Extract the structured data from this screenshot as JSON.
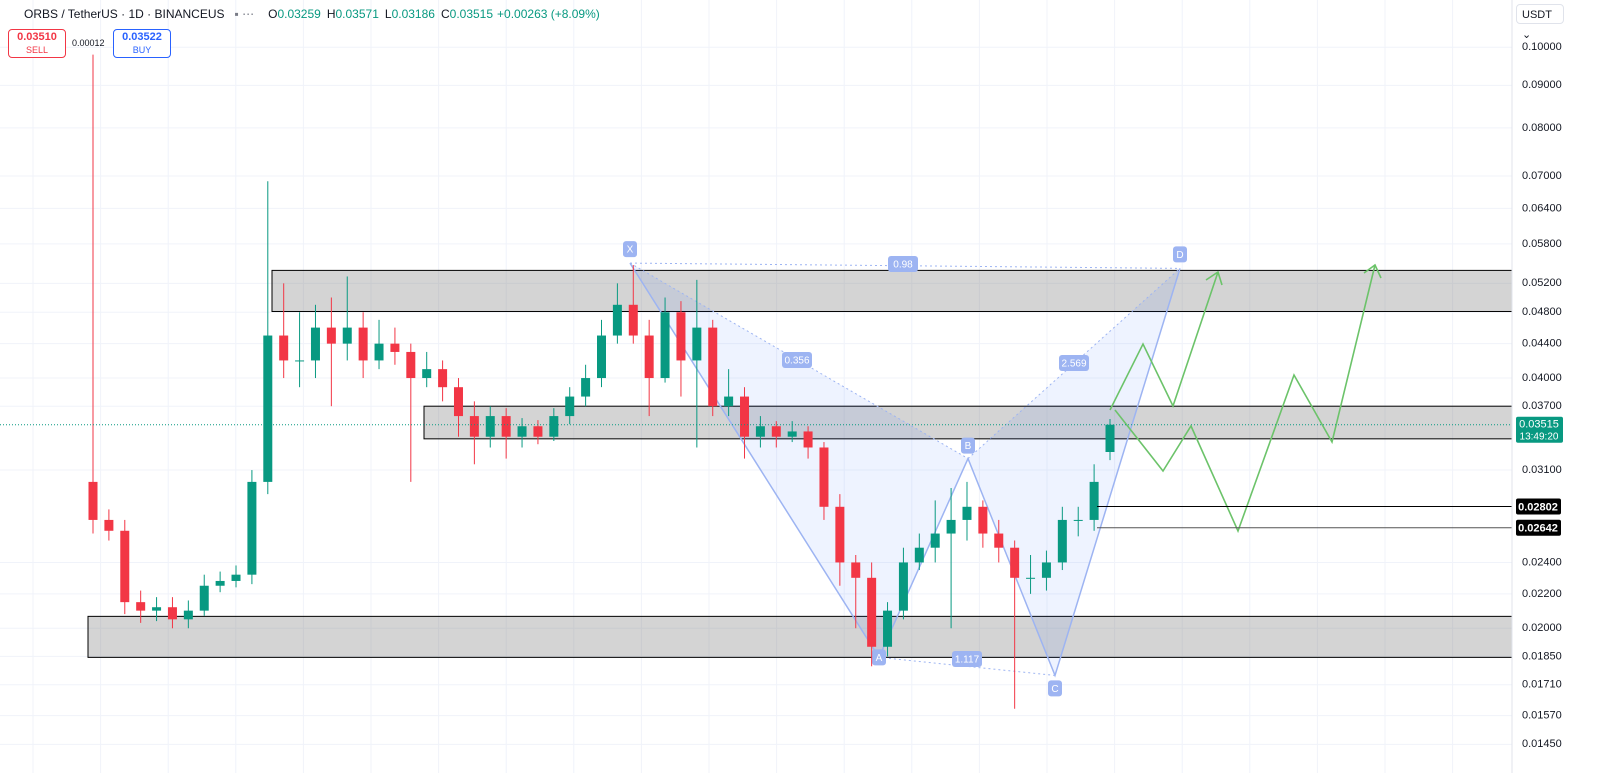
{
  "header": {
    "symbol": "ORBS / TetherUS · 1D · BINANCEUS",
    "ohlc_labels": [
      "O",
      "H",
      "L",
      "C"
    ],
    "change": "+0.00263 (+8.09%)",
    "sell_price": "0.03510",
    "sell": "SELL",
    "spread": "0.00012",
    "buy_price": "0.03522",
    "buy": "BUY",
    "currency": "USDT"
  },
  "chart_data": {
    "type": "candlestick",
    "log_scale": true,
    "grid": true,
    "up_color": "#089981",
    "down_color": "#f23645",
    "open": [
      0.03,
      0.027,
      0.0262,
      0.0215,
      0.021,
      0.0212,
      0.0205,
      0.021,
      0.0225,
      0.0228,
      0.0232,
      0.03,
      0.045,
      0.042,
      0.042,
      0.046,
      0.044,
      0.046,
      0.042,
      0.044,
      0.043,
      0.04,
      0.041,
      0.039,
      0.036,
      0.034,
      0.036,
      0.034,
      0.035,
      0.034,
      0.036,
      0.038,
      0.04,
      0.045,
      0.049,
      0.045,
      0.04,
      0.048,
      0.042,
      0.046,
      0.037,
      0.038,
      0.034,
      0.035,
      0.034,
      0.0345,
      0.033,
      0.028,
      0.024,
      0.023,
      0.019,
      0.021,
      0.024,
      0.025,
      0.026,
      0.027,
      0.028,
      0.026,
      0.025,
      0.023,
      0.023,
      0.024,
      0.027,
      0.027,
      0.03259
    ],
    "high": [
      0.098,
      0.0278,
      0.027,
      0.0222,
      0.0218,
      0.0218,
      0.0216,
      0.0232,
      0.0234,
      0.0238,
      0.031,
      0.069,
      0.052,
      0.048,
      0.049,
      0.05,
      0.053,
      0.048,
      0.047,
      0.046,
      0.044,
      0.043,
      0.042,
      0.04,
      0.0375,
      0.037,
      0.0368,
      0.0358,
      0.0356,
      0.0368,
      0.039,
      0.0415,
      0.047,
      0.052,
      0.0547,
      0.047,
      0.05,
      0.0495,
      0.0525,
      0.047,
      0.041,
      0.039,
      0.036,
      0.0355,
      0.0355,
      0.035,
      0.0335,
      0.029,
      0.0245,
      0.024,
      0.0215,
      0.025,
      0.026,
      0.0285,
      0.0295,
      0.03,
      0.0285,
      0.027,
      0.0255,
      0.0245,
      0.0248,
      0.028,
      0.028,
      0.0315,
      0.03571
    ],
    "low": [
      0.026,
      0.0255,
      0.0208,
      0.0203,
      0.0204,
      0.02,
      0.02,
      0.0207,
      0.0221,
      0.0224,
      0.0226,
      0.029,
      0.04,
      0.039,
      0.04,
      0.037,
      0.042,
      0.04,
      0.041,
      0.0415,
      0.03,
      0.039,
      0.0375,
      0.034,
      0.0315,
      0.033,
      0.032,
      0.033,
      0.0333,
      0.0336,
      0.0352,
      0.037,
      0.039,
      0.044,
      0.044,
      0.036,
      0.0395,
      0.038,
      0.033,
      0.036,
      0.036,
      0.032,
      0.033,
      0.033,
      0.0335,
      0.032,
      0.027,
      0.0225,
      0.02,
      0.018,
      0.0185,
      0.0205,
      0.0235,
      0.024,
      0.02,
      0.0255,
      0.025,
      0.024,
      0.016,
      0.022,
      0.0222,
      0.0235,
      0.0258,
      0.0262,
      0.03186
    ],
    "close": [
      0.027,
      0.0262,
      0.0215,
      0.021,
      0.0212,
      0.0205,
      0.021,
      0.0225,
      0.0228,
      0.0232,
      0.03,
      0.045,
      0.042,
      0.042,
      0.046,
      0.044,
      0.046,
      0.042,
      0.044,
      0.043,
      0.04,
      0.041,
      0.039,
      0.036,
      0.034,
      0.036,
      0.034,
      0.035,
      0.034,
      0.036,
      0.038,
      0.04,
      0.045,
      0.049,
      0.045,
      0.04,
      0.048,
      0.042,
      0.046,
      0.037,
      0.038,
      0.034,
      0.035,
      0.034,
      0.0345,
      0.033,
      0.028,
      0.024,
      0.023,
      0.019,
      0.021,
      0.024,
      0.025,
      0.026,
      0.027,
      0.028,
      0.026,
      0.025,
      0.023,
      0.023,
      0.024,
      0.027,
      0.027,
      0.03,
      0.03515
    ],
    "ylim": [
      0.014,
      0.114
    ],
    "yticks": [
      {
        "value": 0.1,
        "label": "0.10000"
      },
      {
        "value": 0.09,
        "label": "0.09000"
      },
      {
        "value": 0.08,
        "label": "0.08000"
      },
      {
        "value": 0.07,
        "label": "0.07000"
      },
      {
        "value": 0.064,
        "label": "0.06400"
      },
      {
        "value": 0.058,
        "label": "0.05800"
      },
      {
        "value": 0.052,
        "label": "0.05200"
      },
      {
        "value": 0.048,
        "label": "0.04800"
      },
      {
        "value": 0.044,
        "label": "0.04400"
      },
      {
        "value": 0.04,
        "label": "0.04000"
      },
      {
        "value": 0.037,
        "label": "0.03700"
      },
      {
        "value": 0.031,
        "label": "0.03100"
      },
      {
        "value": 0.024,
        "label": "0.02400"
      },
      {
        "value": 0.022,
        "label": "0.02200"
      },
      {
        "value": 0.02,
        "label": "0.02000"
      },
      {
        "value": 0.0185,
        "label": "0.01850"
      },
      {
        "value": 0.0171,
        "label": "0.01710"
      },
      {
        "value": 0.0157,
        "label": "0.01570"
      },
      {
        "value": 0.0145,
        "label": "0.01450"
      }
    ],
    "last_price": 0.03515,
    "countdown": "13:49:20",
    "price_lines": [
      0.02802,
      0.02642
    ],
    "zones": [
      {
        "low": 0.0481,
        "high": 0.0539
      },
      {
        "low": 0.0338,
        "high": 0.037
      },
      {
        "low": 0.01845,
        "high": 0.02067
      }
    ],
    "pattern": {
      "points": [
        {
          "label": "X",
          "value": 0.055
        },
        {
          "label": "A",
          "value": 0.01845
        },
        {
          "label": "B",
          "value": 0.032
        },
        {
          "label": "C",
          "value": 0.01755
        },
        {
          "label": "D",
          "value": 0.0542
        }
      ],
      "ratios": [
        "0.98",
        "0.356",
        "2.569",
        "1.117"
      ]
    }
  }
}
